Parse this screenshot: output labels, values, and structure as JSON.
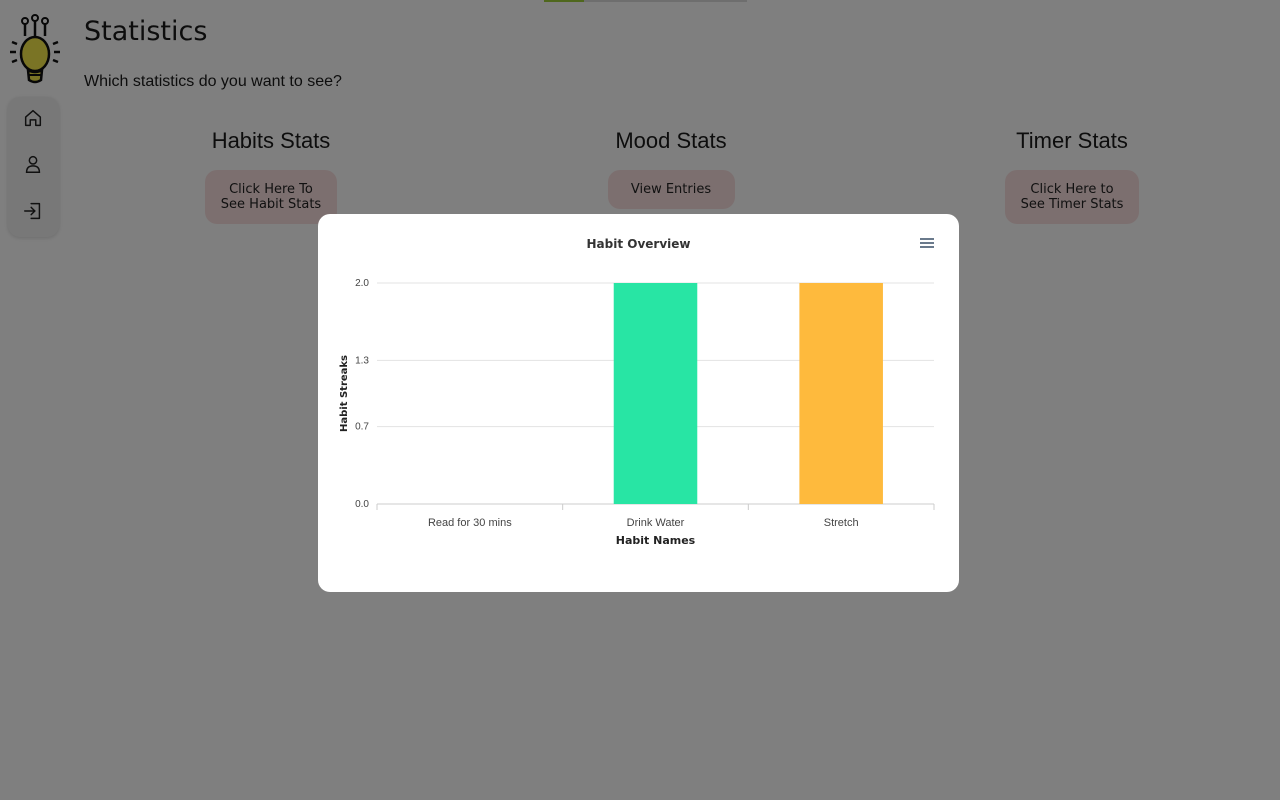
{
  "page": {
    "title": "Statistics",
    "subtitle": "Which statistics do you want to see?"
  },
  "nav": {
    "items": [
      {
        "icon": "home-icon"
      },
      {
        "icon": "user-icon"
      },
      {
        "icon": "logout-icon"
      }
    ]
  },
  "sections": {
    "habits": {
      "heading": "Habits Stats",
      "button_line1": "Click Here To",
      "button_line2": "See Habit Stats"
    },
    "mood": {
      "heading": "Mood Stats",
      "button_line1": "View Entries"
    },
    "timer": {
      "heading": "Timer Stats",
      "button_line1": "Click Here to",
      "button_line2": "See Timer Stats"
    }
  },
  "colors": {
    "overlay": "rgba(0,0,0,0.5)",
    "button_bg": "#f8dede",
    "bar_drink_water": "#28e5a4",
    "bar_stretch": "#feba3d"
  },
  "chart_data": {
    "type": "bar",
    "title": "Habit Overview",
    "xlabel": "Habit Names",
    "ylabel": "Habit Streaks",
    "categories": [
      "Read for 30 mins",
      "Drink Water",
      "Stretch"
    ],
    "values": [
      0,
      2,
      2
    ],
    "bar_colors": [
      "#5b8ff9",
      "#28e5a4",
      "#feba3d"
    ],
    "yticks": [
      "0.0",
      "0.7",
      "1.3",
      "2.0"
    ],
    "ylim": [
      0,
      2
    ],
    "grid": true,
    "legend": false
  }
}
